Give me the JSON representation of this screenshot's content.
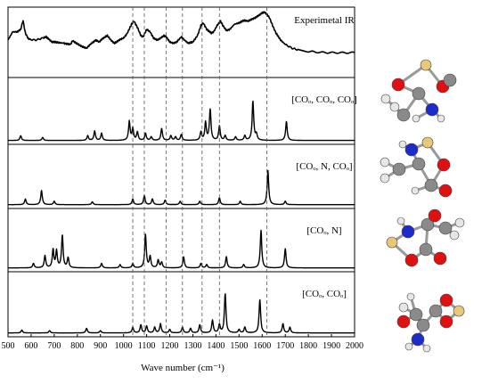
{
  "chart_data": {
    "type": "line",
    "xlabel": "Wave number (cm⁻¹)",
    "xlim": [
      500,
      2000
    ],
    "x_ticks": [
      500,
      600,
      700,
      800,
      900,
      1000,
      1100,
      1200,
      1300,
      1400,
      1500,
      1600,
      1700,
      1800,
      1900,
      2000
    ],
    "x_tick_labels": [
      "500",
      "600",
      "700",
      "800",
      "900",
      "1000",
      "1100",
      "1200",
      "1300",
      "1400",
      "1500",
      "1600",
      "1700",
      "1800",
      "1900",
      "2000"
    ],
    "ylabel": "",
    "reference_lines": [
      1040,
      1090,
      1185,
      1255,
      1340,
      1415,
      1620
    ],
    "panels": [
      {
        "label": "Experimetal IR",
        "ylim": [
          0,
          1
        ],
        "baseline": 0.3,
        "style": "bumpy",
        "color": "#000000",
        "points": [
          [
            500,
            0.55
          ],
          [
            520,
            0.68
          ],
          [
            540,
            0.68
          ],
          [
            555,
            0.72
          ],
          [
            565,
            0.86
          ],
          [
            575,
            0.66
          ],
          [
            590,
            0.56
          ],
          [
            620,
            0.55
          ],
          [
            650,
            0.58
          ],
          [
            665,
            0.6
          ],
          [
            675,
            0.57
          ],
          [
            690,
            0.52
          ],
          [
            700,
            0.52
          ],
          [
            720,
            0.51
          ],
          [
            740,
            0.5
          ],
          [
            755,
            0.49
          ],
          [
            770,
            0.48
          ],
          [
            780,
            0.54
          ],
          [
            795,
            0.5
          ],
          [
            810,
            0.47
          ],
          [
            825,
            0.44
          ],
          [
            840,
            0.42
          ],
          [
            855,
            0.48
          ],
          [
            870,
            0.52
          ],
          [
            880,
            0.55
          ],
          [
            895,
            0.52
          ],
          [
            905,
            0.56
          ],
          [
            920,
            0.6
          ],
          [
            930,
            0.62
          ],
          [
            945,
            0.55
          ],
          [
            960,
            0.5
          ],
          [
            970,
            0.52
          ],
          [
            985,
            0.56
          ],
          [
            1000,
            0.58
          ],
          [
            1015,
            0.65
          ],
          [
            1035,
            0.8
          ],
          [
            1045,
            0.85
          ],
          [
            1060,
            0.75
          ],
          [
            1075,
            0.62
          ],
          [
            1085,
            0.6
          ],
          [
            1100,
            0.72
          ],
          [
            1115,
            0.68
          ],
          [
            1130,
            0.58
          ],
          [
            1145,
            0.55
          ],
          [
            1160,
            0.58
          ],
          [
            1175,
            0.62
          ],
          [
            1185,
            0.6
          ],
          [
            1200,
            0.52
          ],
          [
            1215,
            0.5
          ],
          [
            1230,
            0.52
          ],
          [
            1250,
            0.6
          ],
          [
            1260,
            0.56
          ],
          [
            1280,
            0.5
          ],
          [
            1300,
            0.52
          ],
          [
            1320,
            0.62
          ],
          [
            1335,
            0.78
          ],
          [
            1345,
            0.82
          ],
          [
            1360,
            0.72
          ],
          [
            1380,
            0.66
          ],
          [
            1390,
            0.68
          ],
          [
            1405,
            0.78
          ],
          [
            1420,
            0.85
          ],
          [
            1430,
            0.78
          ],
          [
            1445,
            0.7
          ],
          [
            1460,
            0.72
          ],
          [
            1480,
            0.8
          ],
          [
            1500,
            0.82
          ],
          [
            1520,
            0.86
          ],
          [
            1540,
            0.85
          ],
          [
            1555,
            0.88
          ],
          [
            1570,
            0.9
          ],
          [
            1585,
            0.94
          ],
          [
            1600,
            0.98
          ],
          [
            1610,
            0.99
          ],
          [
            1620,
            0.96
          ],
          [
            1632,
            0.9
          ],
          [
            1645,
            0.78
          ],
          [
            1660,
            0.66
          ],
          [
            1680,
            0.55
          ],
          [
            1700,
            0.48
          ],
          [
            1730,
            0.42
          ],
          [
            1760,
            0.39
          ],
          [
            1800,
            0.37
          ],
          [
            1850,
            0.355
          ],
          [
            1900,
            0.35
          ],
          [
            1950,
            0.35
          ],
          [
            2000,
            0.35
          ]
        ]
      },
      {
        "label": "[COₒ, COₒ, COₒ]",
        "ylim": [
          0,
          1
        ],
        "baseline": 0.02,
        "width": 4,
        "peaks": [
          [
            555,
            0.08
          ],
          [
            650,
            0.05
          ],
          [
            845,
            0.08
          ],
          [
            875,
            0.16
          ],
          [
            905,
            0.12
          ],
          [
            1025,
            0.32
          ],
          [
            1040,
            0.2
          ],
          [
            1060,
            0.14
          ],
          [
            1095,
            0.12
          ],
          [
            1120,
            0.06
          ],
          [
            1165,
            0.2
          ],
          [
            1205,
            0.08
          ],
          [
            1225,
            0.06
          ],
          [
            1250,
            0.1
          ],
          [
            1335,
            0.14
          ],
          [
            1355,
            0.3
          ],
          [
            1375,
            0.52
          ],
          [
            1415,
            0.24
          ],
          [
            1440,
            0.08
          ],
          [
            1485,
            0.06
          ],
          [
            1525,
            0.08
          ],
          [
            1560,
            0.66
          ],
          [
            1575,
            0.1
          ],
          [
            1705,
            0.32
          ]
        ]
      },
      {
        "label": "[COₒ, N, COₒ]",
        "ylim": [
          0,
          1
        ],
        "baseline": 0.02,
        "width": 4,
        "peaks": [
          [
            575,
            0.1
          ],
          [
            645,
            0.25
          ],
          [
            700,
            0.06
          ],
          [
            865,
            0.05
          ],
          [
            1040,
            0.1
          ],
          [
            1090,
            0.16
          ],
          [
            1125,
            0.1
          ],
          [
            1180,
            0.08
          ],
          [
            1245,
            0.06
          ],
          [
            1330,
            0.06
          ],
          [
            1415,
            0.12
          ],
          [
            1505,
            0.06
          ],
          [
            1625,
            0.6
          ],
          [
            1700,
            0.06
          ]
        ]
      },
      {
        "label": "[COₒ, N]",
        "ylim": [
          0,
          1
        ],
        "baseline": 0.02,
        "width": 4,
        "peaks": [
          [
            610,
            0.08
          ],
          [
            660,
            0.22
          ],
          [
            695,
            0.32
          ],
          [
            710,
            0.3
          ],
          [
            735,
            0.58
          ],
          [
            760,
            0.18
          ],
          [
            905,
            0.08
          ],
          [
            985,
            0.06
          ],
          [
            1040,
            0.08
          ],
          [
            1095,
            0.6
          ],
          [
            1115,
            0.2
          ],
          [
            1150,
            0.14
          ],
          [
            1165,
            0.1
          ],
          [
            1260,
            0.2
          ],
          [
            1335,
            0.08
          ],
          [
            1360,
            0.06
          ],
          [
            1445,
            0.2
          ],
          [
            1520,
            0.06
          ],
          [
            1595,
            0.67
          ],
          [
            1700,
            0.34
          ]
        ]
      },
      {
        "label": "[COₒ, COₒ]",
        "ylim": [
          0,
          1
        ],
        "baseline": 0.02,
        "width": 4,
        "peaks": [
          [
            560,
            0.05
          ],
          [
            680,
            0.04
          ],
          [
            840,
            0.08
          ],
          [
            900,
            0.04
          ],
          [
            1040,
            0.1
          ],
          [
            1075,
            0.14
          ],
          [
            1100,
            0.12
          ],
          [
            1135,
            0.1
          ],
          [
            1160,
            0.16
          ],
          [
            1200,
            0.06
          ],
          [
            1255,
            0.1
          ],
          [
            1290,
            0.08
          ],
          [
            1330,
            0.14
          ],
          [
            1385,
            0.22
          ],
          [
            1415,
            0.14
          ],
          [
            1440,
            0.68
          ],
          [
            1500,
            0.06
          ],
          [
            1525,
            0.1
          ],
          [
            1590,
            0.58
          ],
          [
            1690,
            0.16
          ],
          [
            1720,
            0.1
          ]
        ]
      }
    ]
  },
  "molecules": [
    {
      "name": "molecule-co-co-co"
    },
    {
      "name": "molecule-co-n-co"
    },
    {
      "name": "molecule-co-n"
    },
    {
      "name": "molecule-co-co"
    }
  ],
  "colors": {
    "oxygen": "#e01010",
    "nitrogen": "#1c2cc8",
    "carbon": "#8a8a8a",
    "hydrogen": "#e6e6e6",
    "metal": "#e8c878",
    "line": "#000000",
    "dashed": "#555555"
  }
}
